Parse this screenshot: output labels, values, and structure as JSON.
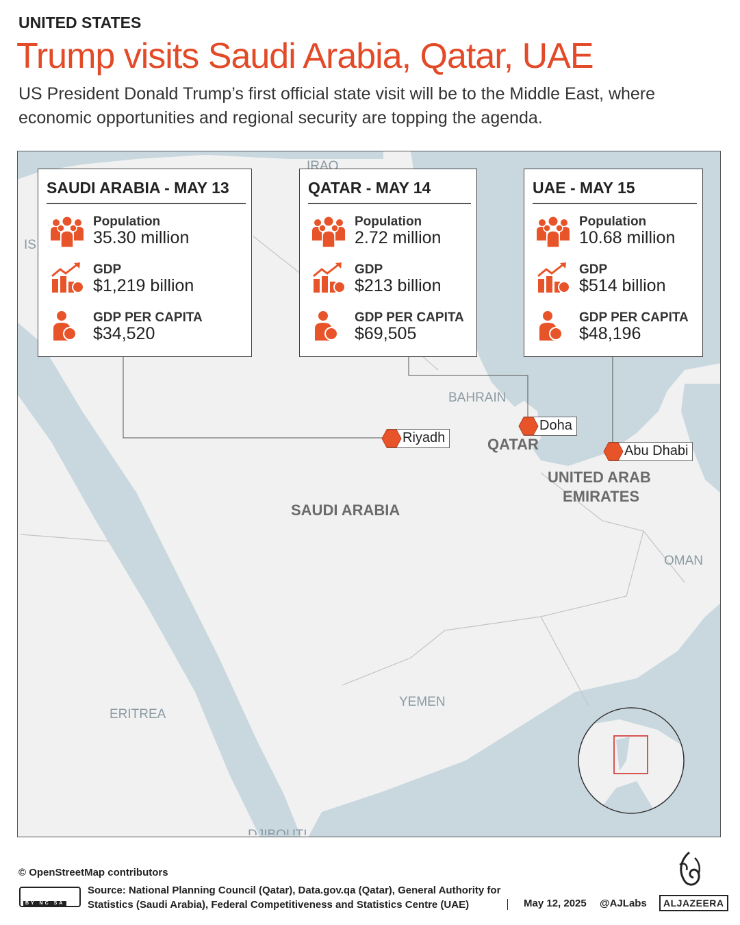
{
  "header": {
    "kicker": "UNITED STATES",
    "title": "Trump visits Saudi Arabia, Qatar, UAE",
    "subtitle": "US President Donald Trump’s first official state visit will be to the Middle East, where economic opportunities and regional security are topping the agenda."
  },
  "cards": [
    {
      "heading": "SAUDI ARABIA - MAY 13",
      "stats": [
        {
          "label": "Population",
          "value": "35.30 million"
        },
        {
          "label": "GDP",
          "value": "$1,219 billion"
        },
        {
          "label": "GDP PER CAPITA",
          "value": "$34,520"
        }
      ]
    },
    {
      "heading": "QATAR - MAY 14",
      "stats": [
        {
          "label": "Population",
          "value": "2.72 million"
        },
        {
          "label": "GDP",
          "value": "$213 billion"
        },
        {
          "label": "GDP PER CAPITA",
          "value": "$69,505"
        }
      ]
    },
    {
      "heading": "UAE - MAY 15",
      "stats": [
        {
          "label": "Population",
          "value": "10.68 million"
        },
        {
          "label": "GDP",
          "value": "$514 billion"
        },
        {
          "label": "GDP PER CAPITA",
          "value": "$48,196"
        }
      ]
    }
  ],
  "cities": [
    "Riyadh",
    "Doha",
    "Abu Dhabi"
  ],
  "map_labels": [
    "IRAQ",
    "IS",
    "BAHRAIN",
    "QATAR",
    "UNITED ARAB",
    "EMIRATES",
    "SAUDI ARABIA",
    "OMAN",
    "YEMEN",
    "ERITREA",
    "DJIBOUTI"
  ],
  "footer": {
    "credit": "© OpenStreetMap contributors",
    "license": "BY NC SA",
    "source": "Source:  National Planning Council (Qatar), Data.gov.qa (Qatar), General Authority for Statistics (Saudi Arabia), Federal Competitiveness and Statistics Centre (UAE)",
    "date": "May 12, 2025",
    "handle": "@AJLabs",
    "brand": "ALJAZEERA"
  }
}
